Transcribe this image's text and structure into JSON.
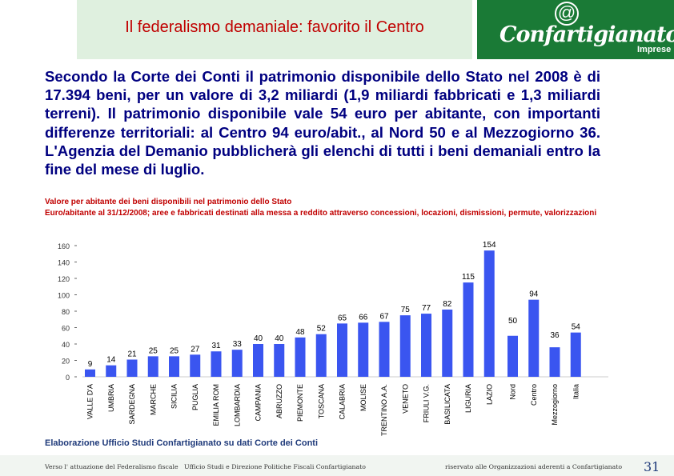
{
  "header": {
    "title": "Il federalismo demaniale: favorito il Centro",
    "logo_name": "Confartigianato",
    "logo_sub": "Imprese",
    "logo_icon": "at-sign-icon"
  },
  "intro": "Secondo la Corte dei Conti il patrimonio disponibile dello Stato nel 2008 è di 17.394 beni, per un valore di 3,2 miliardi (1,9 miliardi fabbricati e 1,3 miliardi terreni). Il patrimonio disponibile vale 54 euro per abitante, con importanti differenze territoriali: al Centro 94 euro/abit., al Nord 50 e al Mezzogiorno 36. L'Agenzia del Demanio pubblicherà gli elenchi di tutti i beni demaniali entro la fine del mese di luglio.",
  "chart_data": {
    "type": "bar",
    "title": "Valore per abitante dei beni disponibili nel patrimonio dello Stato",
    "subtitle": "Euro/abitante al 31/12/2008; aree e fabbricati destinati alla messa a reddito attraverso concessioni, locazioni, dismissioni, permute, valorizzazioni",
    "categories": [
      "VALLE D'A",
      "UMBRIA",
      "SARDEGNA",
      "MARCHE",
      "SICILIA",
      "PUGLIA",
      "EMILIA ROM",
      "LOMBARDIA",
      "CAMPANIA",
      "ABRUZZO",
      "PIEMONTE",
      "TOSCANA",
      "CALABRIA",
      "MOLISE",
      "TRENTINO A.A.",
      "VENETO",
      "FRIULI V.G.",
      "BASILICATA",
      "LIGURIA",
      "LAZIO",
      "Nord",
      "Centro",
      "Mezzogiorno",
      "Italia"
    ],
    "values": [
      9,
      14,
      21,
      25,
      25,
      27,
      31,
      33,
      40,
      40,
      48,
      52,
      65,
      66,
      67,
      75,
      77,
      82,
      115,
      154,
      50,
      94,
      36,
      54
    ],
    "yticks": [
      "0",
      "20",
      "40",
      "60",
      "80",
      "100",
      "120",
      "140",
      "160"
    ],
    "ylim": [
      0,
      160
    ],
    "bar_color": "#3a55f0",
    "grid": false
  },
  "footer": {
    "source": "Elaborazione Ufficio Studi Confartigianato su dati Corte dei Conti",
    "left": "Verso l' attuazione del Federalismo fiscale",
    "center": "Ufficio Studi e Direzione Politiche Fiscali Confartigianato",
    "right": "riservato alle Organizzazioni aderenti a Confartigianato",
    "page": "31"
  },
  "colors": {
    "title_red": "#c00000",
    "text_navy": "#000080",
    "logo_green": "#1a7a36",
    "header_bg": "#dff0df"
  }
}
